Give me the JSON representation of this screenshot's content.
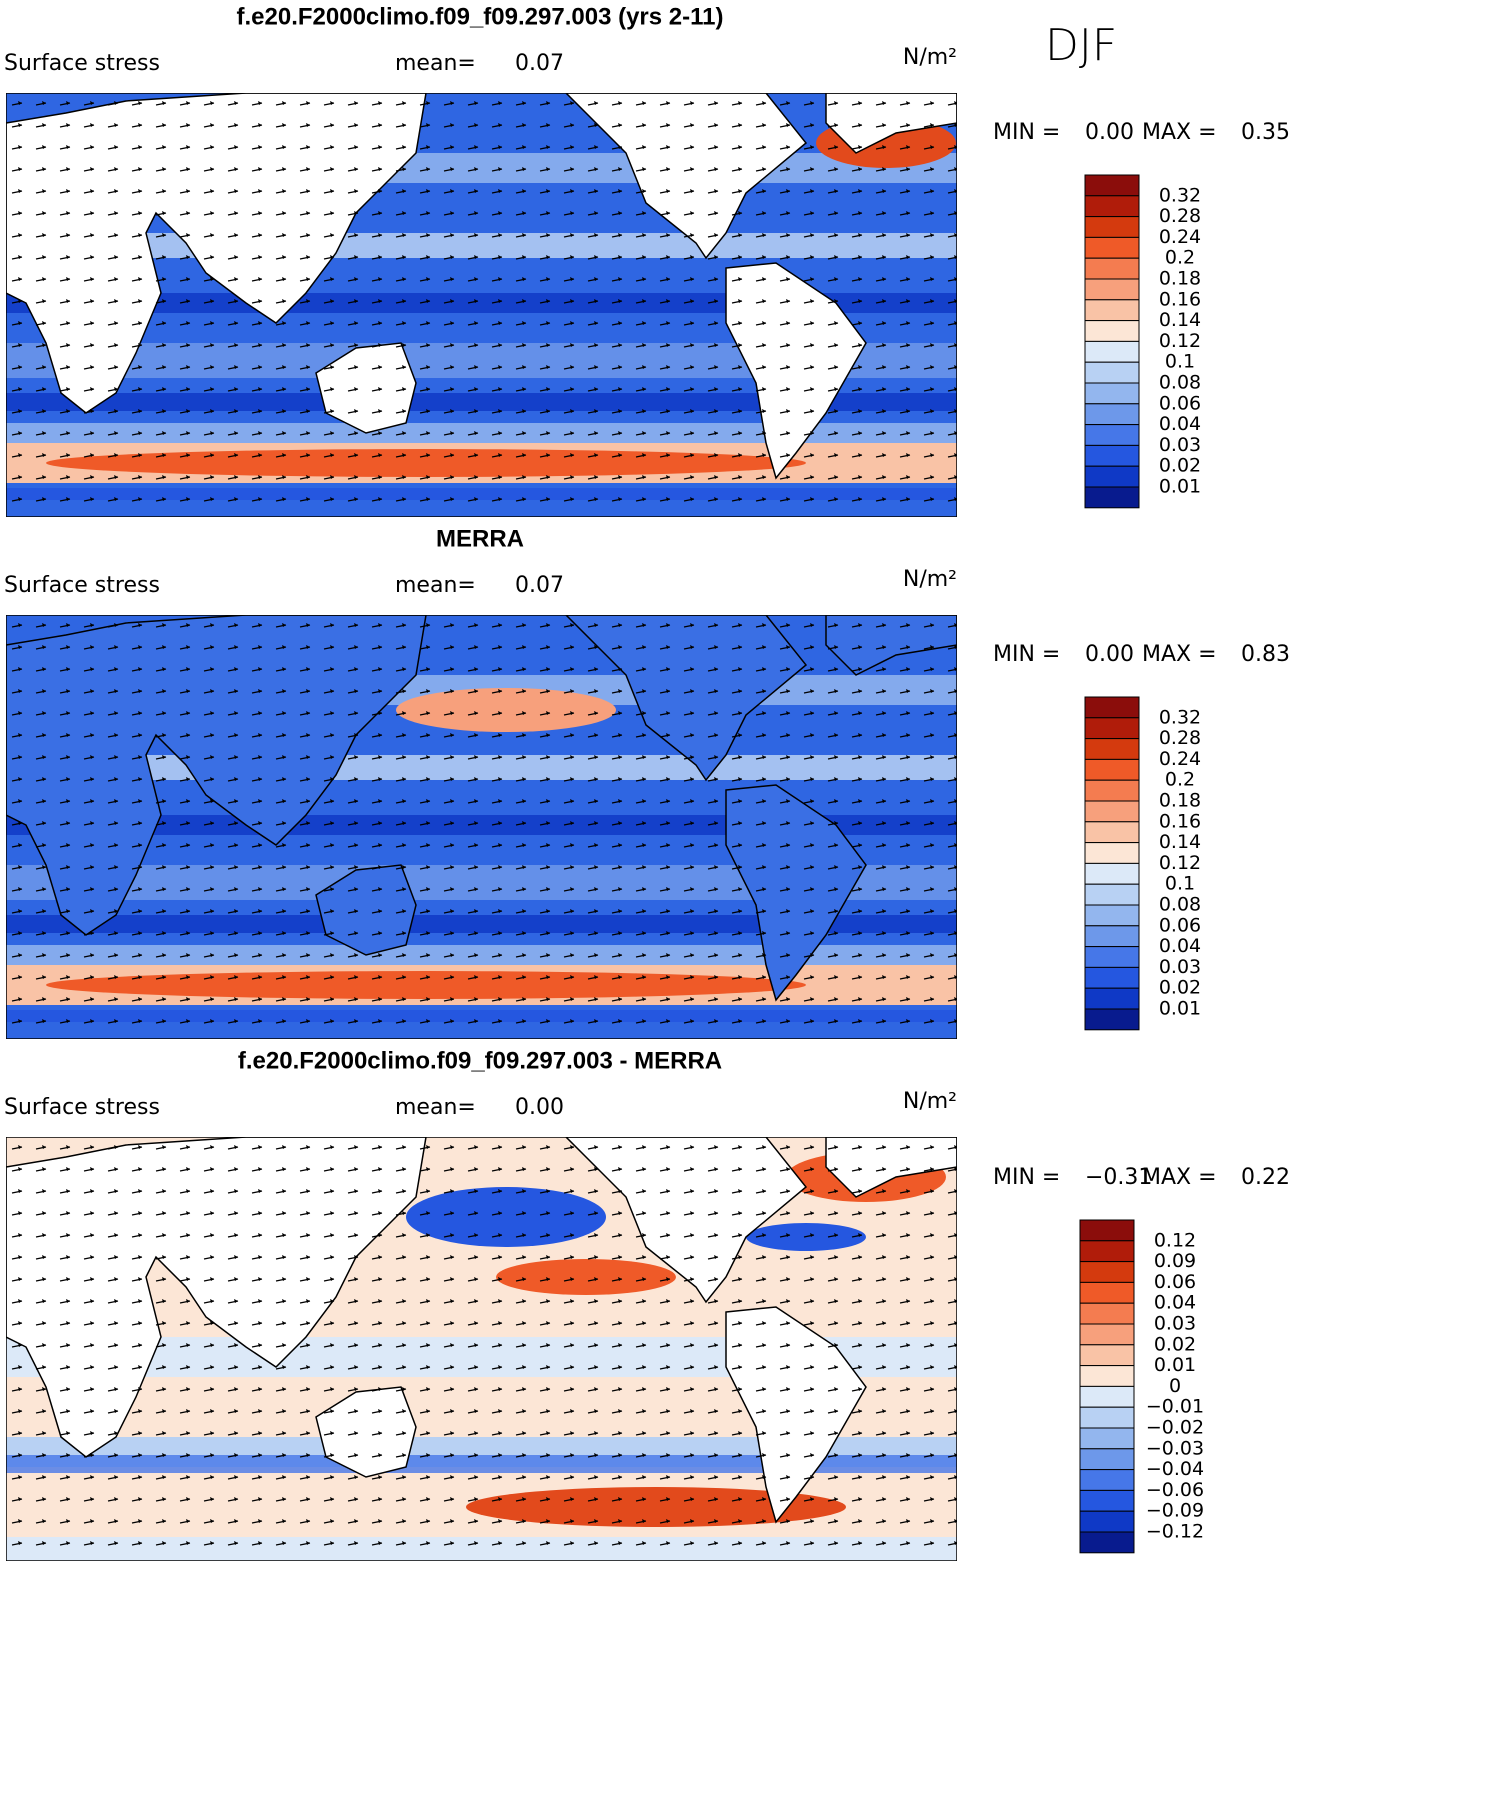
{
  "season": "DJF",
  "panels": [
    {
      "title": "f.e20.F2000climo.f09_f09.297.003 (yrs 2-11)",
      "label": "Surface stress",
      "mean_label": "mean=",
      "mean": "0.07",
      "units": "N/m²",
      "min_label": "MIN =",
      "min": "0.00",
      "max_label": "MAX =",
      "max": "0.35",
      "colorbar": {
        "labels": [
          "0.32",
          "0.28",
          "0.24",
          "0.2",
          "0.18",
          "0.16",
          "0.14",
          "0.12",
          "0.1",
          "0.08",
          "0.06",
          "0.04",
          "0.03",
          "0.02",
          "0.01"
        ],
        "colors": [
          "#8b0d0b",
          "#b01c0a",
          "#d43a0e",
          "#ef5a28",
          "#f47c50",
          "#f7a07c",
          "#f9c3a6",
          "#fce6d6",
          "#dce9f8",
          "#b8d1f3",
          "#93b6ee",
          "#6d98ea",
          "#4677e8",
          "#2557e0",
          "#0f39c6",
          "#081b8e"
        ]
      }
    },
    {
      "title": "MERRA",
      "label": "Surface stress",
      "mean_label": "mean=",
      "mean": "0.07",
      "units": "N/m²",
      "min_label": "MIN =",
      "min": "0.00",
      "max_label": "MAX =",
      "max": "0.83",
      "colorbar": {
        "labels": [
          "0.32",
          "0.28",
          "0.24",
          "0.2",
          "0.18",
          "0.16",
          "0.14",
          "0.12",
          "0.1",
          "0.08",
          "0.06",
          "0.04",
          "0.03",
          "0.02",
          "0.01"
        ],
        "colors": [
          "#8b0d0b",
          "#b01c0a",
          "#d43a0e",
          "#ef5a28",
          "#f47c50",
          "#f7a07c",
          "#f9c3a6",
          "#fce6d6",
          "#dce9f8",
          "#b8d1f3",
          "#93b6ee",
          "#6d98ea",
          "#4677e8",
          "#2557e0",
          "#0f39c6",
          "#081b8e"
        ]
      }
    },
    {
      "title": "f.e20.F2000climo.f09_f09.297.003 - MERRA",
      "label": "Surface stress",
      "mean_label": "mean=",
      "mean": "0.00",
      "units": "N/m²",
      "min_label": "MIN =",
      "min": "−0.31",
      "max_label": "MAX =",
      "max": "0.22",
      "colorbar": {
        "labels": [
          "0.12",
          "0.09",
          "0.06",
          "0.04",
          "0.03",
          "0.02",
          "0.01",
          "0",
          "−0.01",
          "−0.02",
          "−0.03",
          "−0.04",
          "−0.06",
          "−0.09",
          "−0.12"
        ],
        "colors": [
          "#8b0d0b",
          "#b01c0a",
          "#d43a0e",
          "#ef5a28",
          "#f47c50",
          "#f7a07c",
          "#f9c3a6",
          "#fce6d6",
          "#dce9f8",
          "#b8d1f3",
          "#93b6ee",
          "#6d98ea",
          "#4677e8",
          "#2557e0",
          "#0f39c6",
          "#081b8e"
        ]
      }
    }
  ]
}
